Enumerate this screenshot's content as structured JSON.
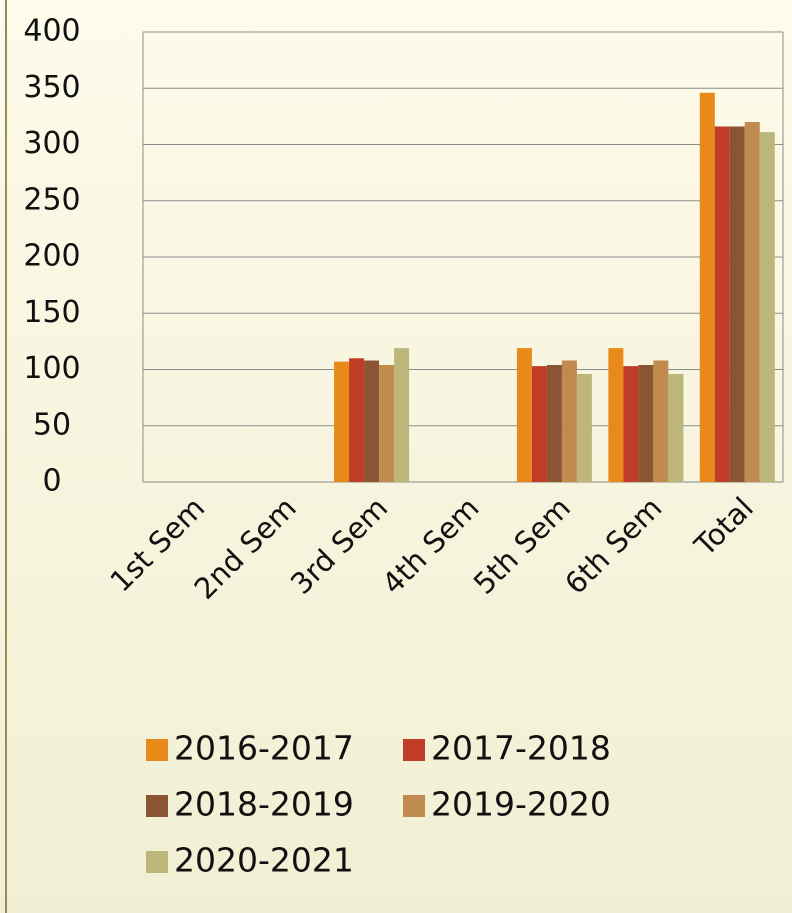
{
  "chart_data": {
    "type": "bar",
    "categories": [
      "1st Sem",
      "2nd Sem",
      "3rd Sem",
      "4th Sem",
      "5th Sem",
      "6th Sem",
      "Total"
    ],
    "series": [
      {
        "name": "2016-2017",
        "color": "#e8891a",
        "values": [
          null,
          null,
          107,
          null,
          119,
          119,
          346
        ]
      },
      {
        "name": "2017-2018",
        "color": "#bf3c27",
        "values": [
          null,
          null,
          110,
          null,
          103,
          103,
          316
        ]
      },
      {
        "name": "2018-2019",
        "color": "#8a5532",
        "values": [
          null,
          null,
          108,
          null,
          104,
          104,
          316
        ]
      },
      {
        "name": "2019-2020",
        "color": "#c18a4f",
        "values": [
          null,
          null,
          104,
          null,
          108,
          108,
          320
        ]
      },
      {
        "name": "2020-2021",
        "color": "#bdb67b",
        "values": [
          null,
          null,
          119,
          null,
          96,
          96,
          311
        ]
      }
    ],
    "ylim": [
      0,
      400
    ],
    "yticks": [
      0,
      50,
      100,
      150,
      200,
      250,
      300,
      350,
      400
    ],
    "grid": true
  }
}
